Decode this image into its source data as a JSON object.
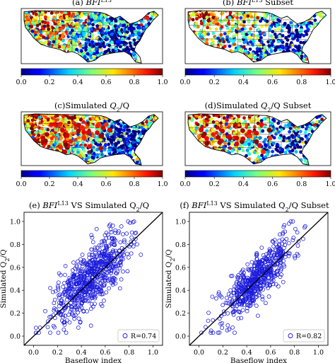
{
  "figure": {
    "colorbar_ticks": [
      "0.0",
      "0.2",
      "0.4",
      "0.6",
      "0.8",
      "1.0"
    ]
  },
  "chart_data": [
    {
      "id": "a",
      "type": "map",
      "title_prefix": "(a) ",
      "title_main": "BFI",
      "title_sup": "L13",
      "title_suffix": "",
      "value_range": [
        0,
        1
      ],
      "colormap": "jet",
      "description_values": "baseflow index per gauge, mostly 0.3-0.7, higher in the west and northern plains"
    },
    {
      "id": "b",
      "type": "map",
      "title_prefix": "(b) ",
      "title_main": "BFI",
      "title_sup": "L13",
      "title_suffix": " Subset",
      "value_range": [
        0,
        1
      ],
      "colormap": "jet"
    },
    {
      "id": "c",
      "type": "map",
      "title_prefix": "(c)Simulated ",
      "title_main": "Q",
      "title_sub": "2",
      "title_suffix": "/Q",
      "value_range": [
        0,
        1
      ],
      "colormap": "jet"
    },
    {
      "id": "d",
      "type": "map",
      "title_prefix": "(d)Simulated ",
      "title_main": "Q",
      "title_sub": "2",
      "title_suffix": "/Q Subset",
      "value_range": [
        0,
        1
      ],
      "colormap": "jet"
    },
    {
      "id": "e",
      "type": "scatter",
      "title_prefix": "(e) ",
      "title_main": "BFI",
      "title_sup": "L13",
      "title_suffix": " VS Simulated Q",
      "title_sub": "2",
      "title_end": "/Q",
      "xlabel": "Baseflow index",
      "ylabel_prefix": "Simulated Q",
      "ylabel_sub": "2",
      "ylabel_suffix": "/Q",
      "xlim": [
        -0.08,
        1.08
      ],
      "ylim": [
        -0.08,
        1.08
      ],
      "xticks": [
        "0.0",
        "0.2",
        "0.4",
        "0.6",
        "0.8",
        "1.0"
      ],
      "yticks": [
        "0.0",
        "0.2",
        "0.4",
        "0.6",
        "0.8",
        "1.0"
      ],
      "legend": "R=0.74",
      "legend_position": "lower-right",
      "one_to_one_line": true,
      "marker": "open-circle",
      "color": "#1a1adb",
      "n_points": 700,
      "r": 0.74,
      "x_mean": 0.48,
      "x_sd": 0.16,
      "y_mean": 0.5,
      "y_sd": 0.2
    },
    {
      "id": "f",
      "type": "scatter",
      "title_prefix": "(f) ",
      "title_main": "BFI",
      "title_sup": "L13",
      "title_suffix": " VS Simulated Q",
      "title_sub": "2",
      "title_end": "/Q Subset",
      "xlabel": "Baseflow index",
      "ylabel_prefix": "Simulated Q",
      "ylabel_sub": "2",
      "ylabel_suffix": "/Q",
      "xlim": [
        -0.08,
        1.08
      ],
      "ylim": [
        -0.08,
        1.08
      ],
      "xticks": [
        "0.0",
        "0.2",
        "0.4",
        "0.6",
        "0.8",
        "1.0"
      ],
      "yticks": [
        "0.0",
        "0.2",
        "0.4",
        "0.6",
        "0.8",
        "1.0"
      ],
      "legend": "R=0.82",
      "legend_position": "lower-right",
      "one_to_one_line": true,
      "marker": "open-circle",
      "color": "#1a1adb",
      "n_points": 600,
      "r": 0.82,
      "x_mean": 0.48,
      "x_sd": 0.15,
      "y_mean": 0.49,
      "y_sd": 0.18
    }
  ]
}
